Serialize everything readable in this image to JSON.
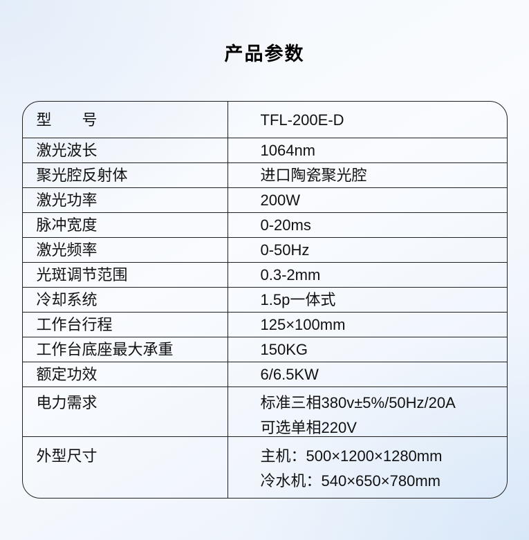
{
  "title": "产品参数",
  "colors": {
    "border": "#1f1f1f",
    "text": "#111111",
    "background_tint": "#e9f1fb"
  },
  "table": {
    "rows": [
      {
        "label": "型　　号",
        "value": "TFL-200E-D"
      },
      {
        "label": "激光波长",
        "value": "1064nm"
      },
      {
        "label": "聚光腔反射体",
        "value": "进口陶瓷聚光腔"
      },
      {
        "label": "激光功率",
        "value": "200W"
      },
      {
        "label": "脉冲宽度",
        "value": "0-20ms"
      },
      {
        "label": "激光频率",
        "value": "0-50Hz"
      },
      {
        "label": "光斑调节范围",
        "value": "0.3-2mm"
      },
      {
        "label": "冷却系统",
        "value": "1.5p一体式"
      },
      {
        "label": "工作台行程",
        "value": "125×100mm"
      },
      {
        "label": "工作台底座最大承重",
        "value": "150KG"
      },
      {
        "label": "额定功效",
        "value": "6/6.5KW"
      },
      {
        "label": "电力需求",
        "value_lines": [
          "标准三相380v±5%/50Hz/20A",
          "可选单相220V"
        ]
      },
      {
        "label": "外型尺寸",
        "value_lines": [
          "主机：500×1200×1280mm",
          "冷水机：540×650×780mm"
        ]
      }
    ]
  }
}
